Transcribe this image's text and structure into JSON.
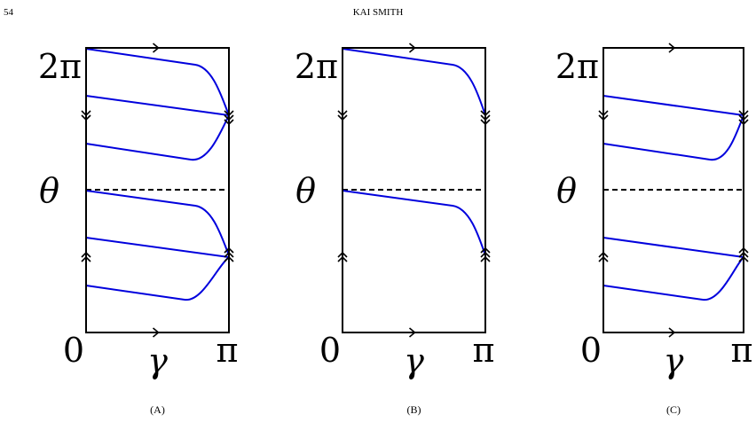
{
  "header": {
    "page_number": "54",
    "running_title": "KAI SMITH"
  },
  "panels": [
    {
      "top_label": "2π",
      "middle_label": "θ",
      "bottom_left_label": "0",
      "bottom_middle_label": "γ",
      "bottom_right_label": "π",
      "caption": "(A)"
    },
    {
      "top_label": "2π",
      "middle_label": "θ",
      "bottom_left_label": "0",
      "bottom_middle_label": "γ",
      "bottom_right_label": "π",
      "caption": "(B)"
    },
    {
      "top_label": "2π",
      "middle_label": "θ",
      "bottom_left_label": "0",
      "bottom_middle_label": "γ",
      "bottom_right_label": "π",
      "caption": "(C)"
    }
  ]
}
